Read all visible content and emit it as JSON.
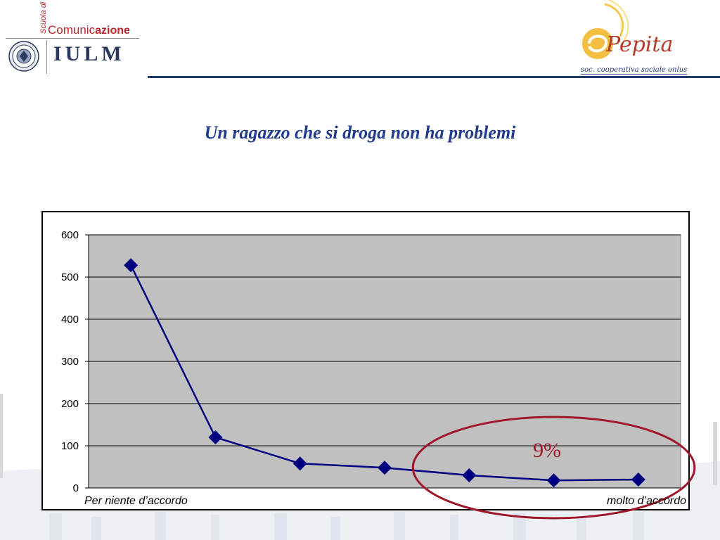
{
  "header": {
    "left_logo": {
      "scuola": "Scuola di",
      "comunic_prefix": "Comunic",
      "comunic_suffix": "azione",
      "name": "IULM"
    },
    "right_logo": {
      "name": "Pepita",
      "subtitle": "soc. cooperativa sociale onlus"
    }
  },
  "colors": {
    "title": "#1f3a8f",
    "header_line": "#1f3b6e",
    "series": "#000080",
    "plot_bg": "#c0c0c0",
    "annotation": "#a0162a"
  },
  "chart_data": {
    "type": "line",
    "title": "Un ragazzo che si droga non ha problemi",
    "x": [
      "Per niente d’accordo",
      "",
      "",
      "",
      "",
      "",
      "molto d’accordo"
    ],
    "series": [
      {
        "values": [
          528,
          120,
          58,
          48,
          30,
          18,
          20
        ],
        "marker": "diamond"
      }
    ],
    "ylim": [
      0,
      600
    ],
    "yticks": [
      "0",
      "100",
      "200",
      "300",
      "400",
      "500",
      "600"
    ],
    "xlabel": "",
    "ylabel": "",
    "grid": true,
    "legend": "none",
    "annotation": {
      "text": "9%",
      "shape": "ellipse",
      "encloses_points": [
        5,
        6,
        7
      ]
    }
  }
}
